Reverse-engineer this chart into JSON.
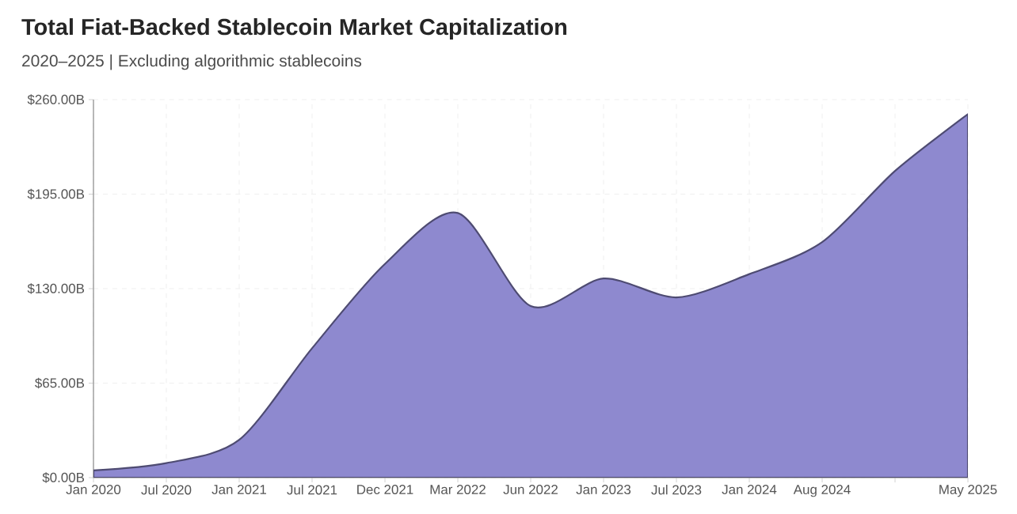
{
  "chart_data": {
    "type": "area",
    "title": "Total Fiat-Backed Stablecoin Market Capitalization",
    "subtitle": "2020–2025 | Excluding algorithmic stablecoins",
    "categories": [
      "Jan 2020",
      "Jul 2020",
      "Jan 2021",
      "Jul 2021",
      "Dec 2021",
      "Mar 2022",
      "Jun 2022",
      "Jan 2023",
      "Jul 2023",
      "Jan 2024",
      "Aug 2024",
      null,
      "May 2025"
    ],
    "values": [
      5,
      10,
      26,
      89,
      147,
      182,
      118,
      137,
      124,
      140,
      162,
      211,
      250
    ],
    "color": "#8e89cf",
    "ylim": [
      0,
      260
    ],
    "yticks": [
      {
        "value": 0,
        "label": "$0.00B"
      },
      {
        "value": 65,
        "label": "$65.00B"
      },
      {
        "value": 130,
        "label": "$130.00B"
      },
      {
        "value": 195,
        "label": "$195.00B"
      },
      {
        "value": 260,
        "label": "$260.00B"
      }
    ],
    "grid": true
  }
}
